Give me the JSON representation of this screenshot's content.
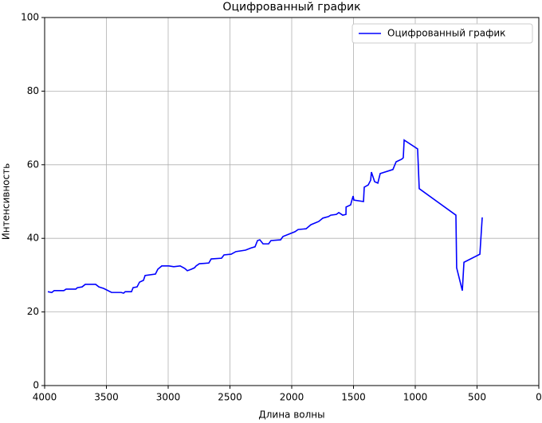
{
  "chart_data": {
    "type": "line",
    "title": "Оцифрованный график",
    "x_label": "Длина волны",
    "y_label": "Интенсивность",
    "xlim": [
      4000,
      0
    ],
    "ylim": [
      0,
      100
    ],
    "xticks": [
      4000,
      3500,
      3000,
      2500,
      2000,
      1500,
      1000,
      500,
      0
    ],
    "yticks": [
      0,
      20,
      40,
      60,
      80,
      100
    ],
    "grid": true,
    "legend": "upper right",
    "series": [
      {
        "name": "Оцифрованный график",
        "color": "#0000ff",
        "x": [
          3974,
          3942,
          3923,
          3845,
          3826,
          3748,
          3735,
          3697,
          3671,
          3587,
          3561,
          3523,
          3458,
          3381,
          3361,
          3348,
          3297,
          3284,
          3252,
          3232,
          3200,
          3187,
          3103,
          3084,
          3052,
          2994,
          2955,
          2903,
          2865,
          2845,
          2813,
          2787,
          2774,
          2748,
          2671,
          2652,
          2568,
          2548,
          2490,
          2452,
          2374,
          2329,
          2297,
          2277,
          2258,
          2232,
          2187,
          2168,
          2090,
          2071,
          1974,
          1948,
          1884,
          1845,
          1781,
          1748,
          1703,
          1684,
          1639,
          1619,
          1587,
          1561,
          1560,
          1523,
          1516,
          1503,
          1497,
          1419,
          1413,
          1381,
          1361,
          1355,
          1329,
          1303,
          1284,
          1181,
          1155,
          1110,
          1097,
          1090,
          981,
          968,
          671,
          665,
          619,
          606,
          477,
          458
        ],
        "values": [
          25.5,
          25.3,
          25.8,
          25.8,
          26.2,
          26.2,
          26.6,
          26.8,
          27.5,
          27.5,
          26.8,
          26.4,
          25.3,
          25.3,
          25.1,
          25.5,
          25.5,
          26.6,
          26.8,
          28.1,
          28.6,
          29.9,
          30.3,
          31.6,
          32.5,
          32.5,
          32.3,
          32.5,
          31.8,
          31.2,
          31.6,
          32.0,
          32.5,
          33.1,
          33.3,
          34.4,
          34.6,
          35.5,
          35.7,
          36.4,
          36.8,
          37.4,
          37.7,
          39.4,
          39.6,
          38.5,
          38.5,
          39.4,
          39.6,
          40.5,
          41.8,
          42.4,
          42.6,
          43.7,
          44.6,
          45.5,
          45.9,
          46.3,
          46.5,
          47.0,
          46.3,
          46.5,
          48.5,
          49.1,
          50.0,
          51.5,
          50.4,
          50.0,
          53.9,
          54.5,
          55.8,
          58.0,
          55.4,
          55.0,
          57.6,
          58.7,
          60.8,
          61.5,
          61.9,
          66.7,
          64.3,
          53.5,
          46.3,
          32.0,
          25.8,
          33.5,
          35.7,
          45.7
        ]
      }
    ]
  }
}
